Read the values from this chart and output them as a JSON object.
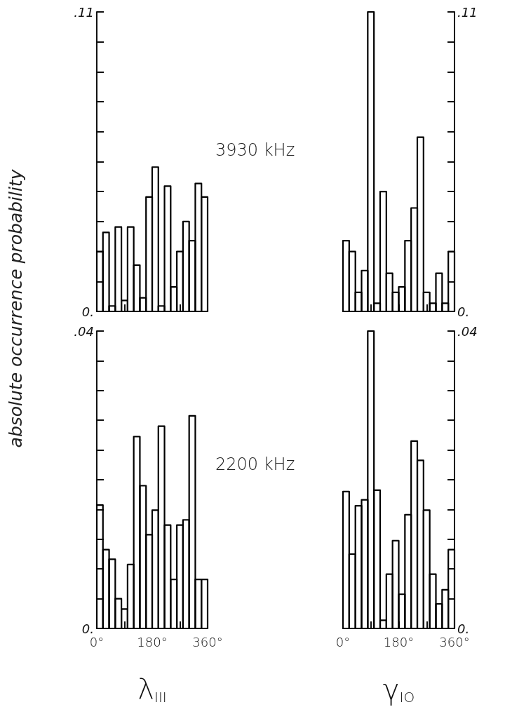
{
  "chart_data": [
    {
      "type": "histogram",
      "title": "3930 kHz",
      "ylabel": "absolute occurrence probability",
      "bins": [
        0,
        20,
        40,
        60,
        80,
        100,
        120,
        140,
        160,
        180,
        200,
        220,
        240,
        260,
        280,
        300,
        320,
        340,
        360
      ],
      "series": [
        {
          "color": "#000000",
          "values": [
            0.022,
            0.029,
            0.002,
            0.031,
            0.004,
            0.031,
            0.017,
            0.005,
            0.042,
            0.053,
            0.002,
            0.046,
            0.009,
            0.022,
            0.033,
            0.026,
            0.047,
            0.042
          ]
        }
      ],
      "xlim": [
        0,
        360
      ],
      "xticks": [
        {
          "value": 0,
          "label": null
        },
        {
          "value": 90,
          "label": null
        },
        {
          "value": 180,
          "label": null
        },
        {
          "value": 270,
          "label": null
        },
        {
          "value": 360,
          "label": null
        }
      ],
      "ylim": [
        0,
        0.11
      ],
      "yticks": [
        {
          "value": 0,
          "label": "0."
        },
        {
          "value": 0.011,
          "label": null
        },
        {
          "value": 0.022,
          "label": null
        },
        {
          "value": 0.033,
          "label": null
        },
        {
          "value": 0.044,
          "label": null
        },
        {
          "value": 0.055,
          "label": null
        },
        {
          "value": 0.066,
          "label": null
        },
        {
          "value": 0.077,
          "label": null
        },
        {
          "value": 0.088,
          "label": null
        },
        {
          "value": 0.099,
          "label": null
        },
        {
          "value": 0.11,
          "label": ".11"
        }
      ],
      "tick_labels": "y",
      "grid": false
    },
    {
      "type": "histogram",
      "bins": [
        0,
        20,
        40,
        60,
        80,
        100,
        120,
        140,
        160,
        180,
        200,
        220,
        240,
        260,
        280,
        300,
        320,
        340,
        360
      ],
      "series": [
        {
          "color": "#000000",
          "axis": "y2",
          "values": [
            0.026,
            0.022,
            0.007,
            0.015,
            0.11,
            0.003,
            0.044,
            0.014,
            0.007,
            0.009,
            0.026,
            0.038,
            0.064,
            0.007,
            0.003,
            0.014,
            0.003,
            0.022
          ]
        }
      ],
      "xlim": [
        0,
        360
      ],
      "xticks": [
        {
          "value": 0,
          "label": null
        },
        {
          "value": 90,
          "label": null
        },
        {
          "value": 180,
          "label": null
        },
        {
          "value": 270,
          "label": null
        },
        {
          "value": 360,
          "label": null
        }
      ],
      "y2lim": [
        0,
        0.11
      ],
      "y2ticks": [
        {
          "value": 0,
          "label": "0."
        },
        {
          "value": 0.011,
          "label": null
        },
        {
          "value": 0.022,
          "label": null
        },
        {
          "value": 0.033,
          "label": null
        },
        {
          "value": 0.044,
          "label": null
        },
        {
          "value": 0.055,
          "label": null
        },
        {
          "value": 0.066,
          "label": null
        },
        {
          "value": 0.077,
          "label": null
        },
        {
          "value": 0.088,
          "label": null
        },
        {
          "value": 0.099,
          "label": null
        },
        {
          "value": 0.11,
          "label": ".11"
        }
      ],
      "tick_labels": "y",
      "grid": false
    },
    {
      "type": "histogram",
      "title": "2200 kHz",
      "xlabel": "λ$_{III}$",
      "bins": [
        0,
        20,
        40,
        60,
        80,
        100,
        120,
        140,
        160,
        180,
        200,
        220,
        240,
        260,
        280,
        300,
        320,
        340,
        360
      ],
      "series": [
        {
          "color": "#000000",
          "values": [
            0.0166,
            0.0106,
            0.0093,
            0.004,
            0.0026,
            0.0086,
            0.0258,
            0.0192,
            0.0126,
            0.0159,
            0.0272,
            0.0139,
            0.0066,
            0.0139,
            0.0146,
            0.0286,
            0.0066,
            0.0066
          ]
        }
      ],
      "xlim": [
        0,
        360
      ],
      "xticks": [
        {
          "value": 0,
          "label": "0°"
        },
        {
          "value": 90,
          "label": null
        },
        {
          "value": 180,
          "label": "180°"
        },
        {
          "value": 270,
          "label": null
        },
        {
          "value": 360,
          "label": "360°"
        }
      ],
      "ylim": [
        0,
        0.04
      ],
      "yticks": [
        {
          "value": 0,
          "label": "0."
        },
        {
          "value": 0.004,
          "label": null
        },
        {
          "value": 0.008,
          "label": null
        },
        {
          "value": 0.012,
          "label": null
        },
        {
          "value": 0.016,
          "label": null
        },
        {
          "value": 0.02,
          "label": null
        },
        {
          "value": 0.024,
          "label": null
        },
        {
          "value": 0.028,
          "label": null
        },
        {
          "value": 0.032,
          "label": null
        },
        {
          "value": 0.036,
          "label": null
        },
        {
          "value": 0.04,
          "label": ".04"
        }
      ],
      "grid": false
    },
    {
      "type": "histogram",
      "xlabel": "γ$_{IO}$",
      "bins": [
        0,
        20,
        40,
        60,
        80,
        100,
        120,
        140,
        160,
        180,
        200,
        220,
        240,
        260,
        280,
        300,
        320,
        340,
        360
      ],
      "series": [
        {
          "color": "#000000",
          "axis": "y2",
          "values": [
            0.0184,
            0.01,
            0.0165,
            0.0173,
            0.04,
            0.0186,
            0.0011,
            0.0073,
            0.0118,
            0.0046,
            0.0153,
            0.0252,
            0.0226,
            0.0159,
            0.0073,
            0.0033,
            0.0052,
            0.0106
          ]
        }
      ],
      "xlim": [
        0,
        360
      ],
      "xticks": [
        {
          "value": 0,
          "label": "0°"
        },
        {
          "value": 90,
          "label": null
        },
        {
          "value": 180,
          "label": "180°"
        },
        {
          "value": 270,
          "label": null
        },
        {
          "value": 360,
          "label": "360°"
        }
      ],
      "y2lim": [
        0,
        0.04
      ],
      "y2ticks": [
        {
          "value": 0,
          "label": "0."
        },
        {
          "value": 0.004,
          "label": null
        },
        {
          "value": 0.008,
          "label": null
        },
        {
          "value": 0.012,
          "label": null
        },
        {
          "value": 0.016,
          "label": null
        },
        {
          "value": 0.02,
          "label": null
        },
        {
          "value": 0.024,
          "label": null
        },
        {
          "value": 0.028,
          "label": null
        },
        {
          "value": 0.032,
          "label": null
        },
        {
          "value": 0.036,
          "label": null
        },
        {
          "value": 0.04,
          "label": ".04"
        }
      ],
      "grid": false
    }
  ]
}
